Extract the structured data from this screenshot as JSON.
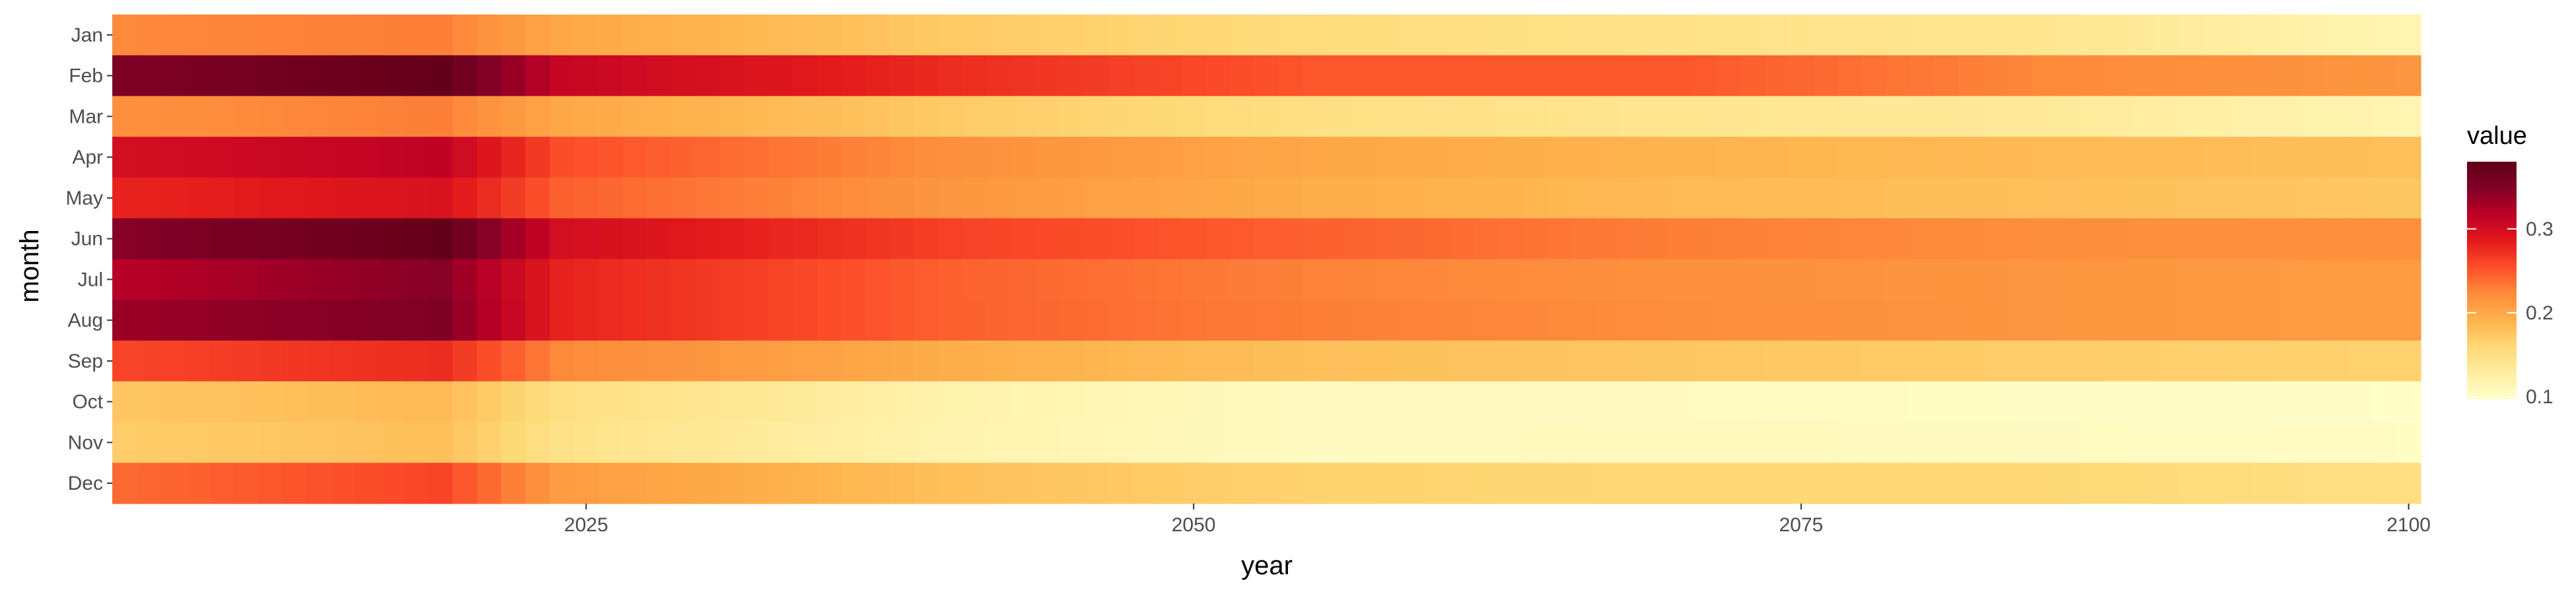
{
  "chart_data": {
    "type": "heatmap",
    "x_field": "year",
    "y_field": "month",
    "xlabel": "year",
    "ylabel": "month",
    "xlim": [
      2006,
      2100
    ],
    "x_ticks": [
      2025,
      2050,
      2075,
      2100
    ],
    "x_tick_labels": [
      "2025",
      "2050",
      "2075",
      "2100"
    ],
    "months": [
      "Jan",
      "Feb",
      "Mar",
      "Apr",
      "May",
      "Jun",
      "Jul",
      "Aug",
      "Sep",
      "Oct",
      "Nov",
      "Dec"
    ],
    "years": {
      "start": 2006,
      "end": 2100,
      "step": 1
    },
    "value_keypoints_years": [
      2006,
      2019,
      2024,
      2040,
      2055,
      2070,
      2085,
      2100
    ],
    "month_values": {
      "Jan": [
        0.225,
        0.23,
        0.2,
        0.172,
        0.155,
        0.145,
        0.14,
        0.115
      ],
      "Feb": [
        0.35,
        0.375,
        0.31,
        0.275,
        0.25,
        0.25,
        0.225,
        0.215
      ],
      "Mar": [
        0.22,
        0.23,
        0.2,
        0.172,
        0.15,
        0.14,
        0.133,
        0.115
      ],
      "Apr": [
        0.3,
        0.315,
        0.255,
        0.22,
        0.2,
        0.19,
        0.185,
        0.18
      ],
      "May": [
        0.28,
        0.295,
        0.245,
        0.215,
        0.195,
        0.185,
        0.18,
        0.175
      ],
      "Jun": [
        0.345,
        0.375,
        0.3,
        0.262,
        0.245,
        0.23,
        0.222,
        0.22
      ],
      "Jul": [
        0.32,
        0.345,
        0.28,
        0.245,
        0.228,
        0.22,
        0.215,
        0.21
      ],
      "Aug": [
        0.335,
        0.35,
        0.28,
        0.245,
        0.23,
        0.222,
        0.215,
        0.21
      ],
      "Sep": [
        0.26,
        0.275,
        0.225,
        0.195,
        0.18,
        0.175,
        0.17,
        0.165
      ],
      "Oct": [
        0.175,
        0.185,
        0.15,
        0.12,
        0.105,
        0.105,
        0.102,
        0.1
      ],
      "Nov": [
        0.17,
        0.18,
        0.145,
        0.118,
        0.105,
        0.108,
        0.105,
        0.103
      ],
      "Dec": [
        0.24,
        0.26,
        0.21,
        0.18,
        0.165,
        0.16,
        0.16,
        0.15
      ]
    },
    "color_scale": {
      "name": "YlOrRd",
      "domain": [
        0.097,
        0.38
      ],
      "stops": [
        "#FFFFCC",
        "#FFEDA0",
        "#FED976",
        "#FEB24C",
        "#FD8D3C",
        "#FC4E2A",
        "#E31A1C",
        "#BD0026",
        "#800026",
        "#600018"
      ]
    },
    "legend": {
      "title": "value",
      "ticks": [
        0.1,
        0.2,
        0.3
      ],
      "tick_labels": [
        "0.1",
        "0.2",
        "0.3"
      ],
      "position": "right"
    }
  }
}
